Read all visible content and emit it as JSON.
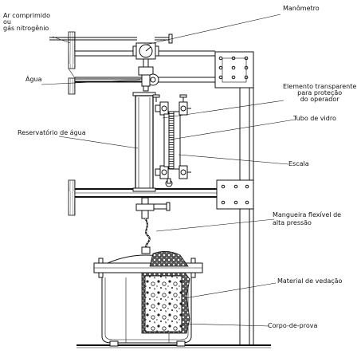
{
  "labels": {
    "gas_inlet": [
      "Ar comprimido",
      "ou",
      "gás nitrogênio"
    ],
    "manometer": "Manômetro",
    "water": "Água",
    "transparent_element": [
      "Elemento transparente",
      "para proteção",
      "do operador"
    ],
    "glass_tube": "Tubo de vidro",
    "water_reservoir": "Reservatório de água",
    "scale": "Escala",
    "flexible_hose": [
      "Mangueira flexível de",
      "alta pressão"
    ],
    "sealing_material": "Material de vedação",
    "specimen": "Corpo-de-prova"
  }
}
